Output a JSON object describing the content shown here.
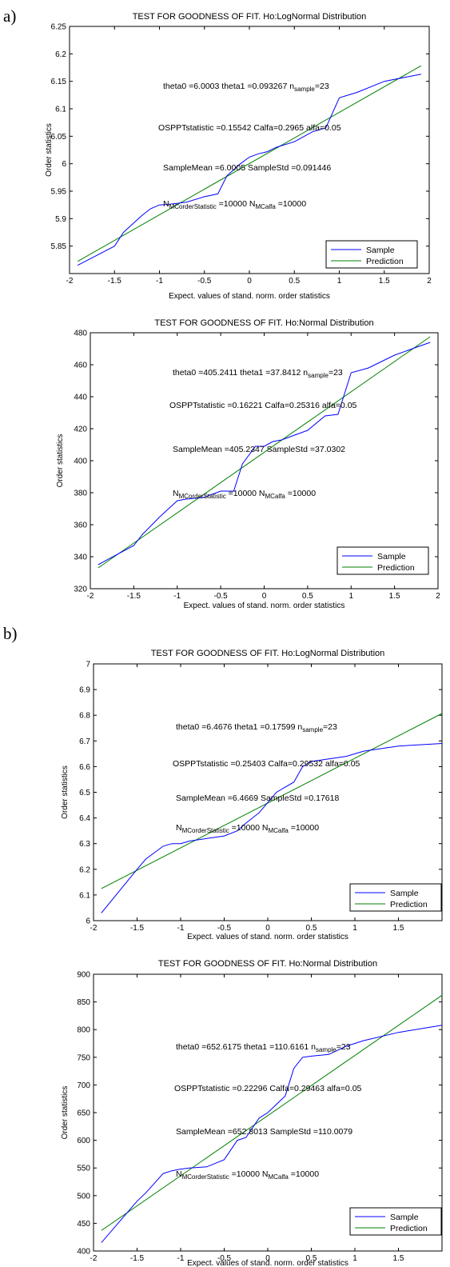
{
  "panel_labels": [
    "a)",
    "b)"
  ],
  "chart_data": [
    {
      "type": "line",
      "title": "TEST FOR GOODNESS OF FIT. Ho:LogNormal Distribution",
      "xlabel": "Expect. values of stand. norm. order statistics",
      "ylabel": "Order statistics",
      "xlim": [
        -2,
        2
      ],
      "ylim": [
        5.8,
        6.25
      ],
      "xticks": [
        "-2",
        "-1.5",
        "-1",
        "-0.5",
        "0",
        "0.5",
        "1",
        "1.5",
        "2"
      ],
      "yticks": [
        "5.85",
        "5.9",
        "5.95",
        "6",
        "6.05",
        "6.1",
        "6.15",
        "6.2",
        "6.25"
      ],
      "legend": [
        "Sample",
        "Prediction"
      ],
      "legend_position": "bottom-right",
      "colors": {
        "sample": "#0000ff",
        "prediction": "#008000"
      },
      "annotations": {
        "theta0": "6.0003",
        "theta1": "0.093267",
        "n_sample": "23",
        "ospp": "0.15542",
        "calfa": "0.2965",
        "alfa": "0.05",
        "mean": "6.0005",
        "std": "0.091446",
        "n_mc_os": "10000",
        "n_mc_calfa": "10000"
      },
      "series": [
        {
          "name": "Sample",
          "x": [
            -1.91,
            -1.5,
            -1.4,
            -1.2,
            -1.1,
            -1.0,
            -0.9,
            -0.7,
            -0.5,
            -0.35,
            -0.25,
            -0.1,
            0.0,
            0.1,
            0.2,
            0.3,
            0.5,
            0.7,
            0.85,
            1.0,
            1.2,
            1.5,
            1.91
          ],
          "y": [
            5.815,
            5.85,
            5.875,
            5.905,
            5.918,
            5.925,
            5.926,
            5.93,
            5.94,
            5.945,
            5.978,
            6.0,
            6.012,
            6.018,
            6.022,
            6.03,
            6.04,
            6.058,
            6.065,
            6.12,
            6.13,
            6.15,
            6.163
          ]
        },
        {
          "name": "Prediction",
          "x": [
            -1.91,
            1.91
          ],
          "y": [
            5.8222,
            6.1784
          ]
        }
      ]
    },
    {
      "type": "line",
      "title": "TEST FOR GOODNESS OF FIT. Ho:Normal Distribution",
      "xlabel": "Expect. values of stand. norm. order statistics",
      "ylabel": "Order statistics",
      "xlim": [
        -2,
        2
      ],
      "ylim": [
        320,
        480
      ],
      "xticks": [
        "-2",
        "-1.5",
        "-1",
        "-0.5",
        "0",
        "0.5",
        "1",
        "1.5",
        "2"
      ],
      "yticks": [
        "320",
        "340",
        "360",
        "380",
        "400",
        "420",
        "440",
        "460",
        "480"
      ],
      "legend": [
        "Sample",
        "Prediction"
      ],
      "legend_position": "bottom-right",
      "colors": {
        "sample": "#0000ff",
        "prediction": "#008000"
      },
      "annotations": {
        "theta0": "405.2411",
        "theta1": "37.8412",
        "n_sample": "23",
        "ospp": "0.16221",
        "calfa": "0.25316",
        "alfa": "0.05",
        "mean": "405.2347",
        "std": "37.0302",
        "n_mc_os": "10000",
        "n_mc_calfa": "10000"
      },
      "series": [
        {
          "name": "Sample",
          "x": [
            -1.91,
            -1.5,
            -1.4,
            -1.2,
            -1.1,
            -1.0,
            -0.9,
            -0.7,
            -0.5,
            -0.35,
            -0.25,
            -0.1,
            0.0,
            0.1,
            0.2,
            0.3,
            0.5,
            0.7,
            0.85,
            1.0,
            1.2,
            1.5,
            1.91
          ],
          "y": [
            335,
            347,
            354,
            365,
            370,
            375,
            376,
            377,
            381,
            381,
            398,
            409,
            409,
            412,
            413,
            415,
            419,
            428,
            429,
            455,
            458,
            466,
            474
          ]
        },
        {
          "name": "Prediction",
          "x": [
            -1.91,
            1.91
          ],
          "y": [
            333.0,
            477.5
          ]
        }
      ]
    },
    {
      "type": "line",
      "title": "TEST FOR GOODNESS OF FIT. Ho:LogNormal Distribution",
      "xlabel": "Expect. values of stand. norm. order statistics",
      "ylabel": "Order statistics",
      "xlim": [
        -2,
        2
      ],
      "ylim": [
        6,
        7
      ],
      "xticks": [
        "-2",
        "-1.5",
        "-1",
        "-0.5",
        "0",
        "0.5",
        "1",
        "1.5"
      ],
      "yticks": [
        "6",
        "6.1",
        "6.2",
        "6.3",
        "6.4",
        "6.5",
        "6.6",
        "6.7",
        "6.8",
        "6.9",
        "7"
      ],
      "legend": [
        "Sample",
        "Prediction"
      ],
      "legend_position": "bottom-right",
      "colors": {
        "sample": "#0000ff",
        "prediction": "#008000"
      },
      "annotations": {
        "theta0": "6.4676",
        "theta1": "0.17599",
        "n_sample": "23",
        "ospp": "0.25403",
        "calfa": "0.29532",
        "alfa": "0.05",
        "mean": "6.4669",
        "std": "0.17618",
        "n_mc_os": "10000",
        "n_mc_calfa": "10000"
      },
      "series": [
        {
          "name": "Sample",
          "x": [
            -1.91,
            -1.5,
            -1.4,
            -1.2,
            -1.1,
            -1.0,
            -0.9,
            -0.7,
            -0.5,
            -0.35,
            -0.25,
            -0.1,
            0.0,
            0.1,
            0.2,
            0.3,
            0.4,
            0.5,
            0.7,
            0.9,
            1.1,
            1.5,
            2.0
          ],
          "y": [
            6.03,
            6.2,
            6.24,
            6.29,
            6.3,
            6.3,
            6.31,
            6.32,
            6.33,
            6.35,
            6.38,
            6.42,
            6.46,
            6.5,
            6.52,
            6.54,
            6.6,
            6.62,
            6.63,
            6.64,
            6.66,
            6.68,
            6.69
          ]
        },
        {
          "name": "Prediction",
          "x": [
            -1.91,
            2.0
          ],
          "y": [
            6.125,
            6.807
          ]
        }
      ]
    },
    {
      "type": "line",
      "title": "TEST FOR GOODNESS OF FIT. Ho:Normal Distribution",
      "xlabel": "Expect. values of stand. norm. order statistics",
      "ylabel": "Order statistics",
      "xlim": [
        -2,
        2
      ],
      "ylim": [
        400,
        900
      ],
      "xticks": [
        "-2",
        "-1.5",
        "-1",
        "-0.5",
        "0",
        "0.5",
        "1",
        "1.5"
      ],
      "yticks": [
        "400",
        "450",
        "500",
        "550",
        "600",
        "650",
        "700",
        "750",
        "800",
        "850",
        "900"
      ],
      "legend": [
        "Sample",
        "Prediction"
      ],
      "legend_position": "bottom-right",
      "colors": {
        "sample": "#0000ff",
        "prediction": "#008000"
      },
      "annotations": {
        "theta0": "652.6175",
        "theta1": "110.6161",
        "n_sample": "23",
        "ospp": "0.22296",
        "calfa": "0.29463",
        "alfa": "0.05",
        "mean": "652.8013",
        "std": "110.0079",
        "n_mc_os": "10000",
        "n_mc_calfa": "10000"
      },
      "series": [
        {
          "name": "Sample",
          "x": [
            -1.91,
            -1.5,
            -1.4,
            -1.2,
            -1.1,
            -1.0,
            -0.9,
            -0.7,
            -0.5,
            -0.35,
            -0.25,
            -0.1,
            0.0,
            0.1,
            0.2,
            0.3,
            0.4,
            0.5,
            0.7,
            0.9,
            1.1,
            1.5,
            2.0
          ],
          "y": [
            415,
            490,
            505,
            540,
            545,
            548,
            550,
            552,
            565,
            600,
            605,
            640,
            650,
            665,
            680,
            730,
            750,
            752,
            755,
            770,
            780,
            795,
            808
          ]
        },
        {
          "name": "Prediction",
          "x": [
            -1.91,
            2.0
          ],
          "y": [
            437.0,
            862.0
          ]
        }
      ]
    }
  ]
}
